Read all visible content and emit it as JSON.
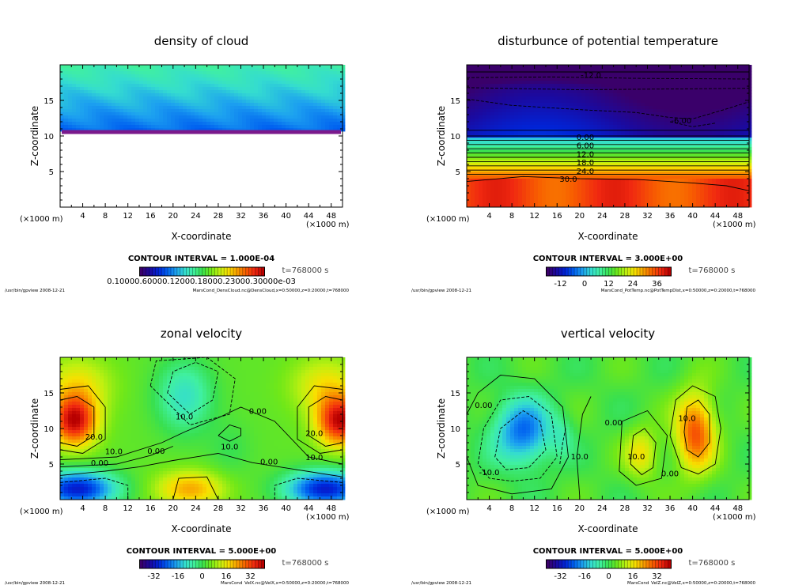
{
  "colors": {
    "frame": "#000000",
    "magenta": "#7a1a8c",
    "scale": [
      "#3a006a",
      "#1a0aa0",
      "#0024d8",
      "#0060f0",
      "#1ca0f0",
      "#34dcd0",
      "#40f0a0",
      "#38e050",
      "#70e818",
      "#c0f010",
      "#f8e000",
      "#f8a000",
      "#f86000",
      "#f02810",
      "#b80000"
    ]
  },
  "chart_data": [
    {
      "id": "cloud",
      "type": "heatmap",
      "title": "density of cloud",
      "xlabel": "X-coordinate",
      "ylabel": "Z-coordinate",
      "x_multiplier": "(×1000 m)",
      "x_multiplier_right": "(×1000 m)",
      "xlim": [
        0,
        50
      ],
      "ylim": [
        0,
        20
      ],
      "xticks": [
        4,
        8,
        12,
        16,
        20,
        24,
        28,
        32,
        36,
        40,
        44,
        48
      ],
      "yticks": [
        5,
        10,
        15
      ],
      "contour_interval": "CONTOUR INTERVAL = 1.000E-04",
      "time": "t=768000 s",
      "colorbar_labels": "0.10000.60000.12000.18000.23000.30000e-03",
      "footer_left": "/usr/bin/gpview  2008-12-21",
      "footer_right": "MarsCond_DensCloud.nc@DensCloud,x=0:50000,z=0:20000,t=768000",
      "cloud_base_z": 10.5,
      "contour_labels": []
    },
    {
      "id": "pottemp",
      "type": "heatmap",
      "title": "disturbunce of potential temperature",
      "xlabel": "X-coordinate",
      "ylabel": "Z-coordinate",
      "x_multiplier": "(×1000 m)",
      "x_multiplier_right": "(×1000 m)",
      "xlim": [
        0,
        50
      ],
      "ylim": [
        0,
        20
      ],
      "xticks": [
        4,
        8,
        12,
        16,
        20,
        24,
        28,
        32,
        36,
        40,
        44,
        48
      ],
      "yticks": [
        5,
        10,
        15
      ],
      "contour_interval": "CONTOUR INTERVAL = 3.000E+00",
      "time": "t=768000 s",
      "colorbar_ticks": [
        "-12",
        "0",
        "12",
        "24",
        "36"
      ],
      "footer_left": "/usr/bin/gpview  2008-12-21",
      "footer_right": "MarsCond_PotTemp.nc@PotTempDist,x=0:50000,z=0:20000,t=768000",
      "contour_labels": [
        {
          "text": "-12.0",
          "x": 22,
          "z": 18.5
        },
        {
          "text": "-6.00",
          "x": 38,
          "z": 12.1
        },
        {
          "text": "0.00",
          "x": 21,
          "z": 9.8
        },
        {
          "text": "6.00",
          "x": 21,
          "z": 8.6
        },
        {
          "text": "12.0",
          "x": 21,
          "z": 7.4
        },
        {
          "text": "18.0",
          "x": 21,
          "z": 6.2
        },
        {
          "text": "24.0",
          "x": 21,
          "z": 5.0
        },
        {
          "text": "30.0",
          "x": 18,
          "z": 3.9
        }
      ]
    },
    {
      "id": "velx",
      "type": "heatmap",
      "title": "zonal velocity",
      "xlabel": "X-coordinate",
      "ylabel": "Z-coordinate",
      "x_multiplier": "(×1000 m)",
      "x_multiplier_right": "(×1000 m)",
      "xlim": [
        0,
        50
      ],
      "ylim": [
        0,
        20
      ],
      "xticks": [
        4,
        8,
        12,
        16,
        20,
        24,
        28,
        32,
        36,
        40,
        44,
        48
      ],
      "yticks": [
        5,
        10,
        15
      ],
      "contour_interval": "CONTOUR INTERVAL = 5.000E+00",
      "time": "t=768000 s",
      "colorbar_ticks": [
        "-32",
        "-16",
        "0",
        "16",
        "32"
      ],
      "footer_left": "/usr/bin/gpview  2008-12-21",
      "footer_right": "MarsCond_VelX.nc@VelX,x=0:50000,z=0:20000,t=768000",
      "contour_labels": [
        {
          "text": "10.0",
          "x": 22,
          "z": 11.6
        },
        {
          "text": "0.00",
          "x": 35,
          "z": 12.4
        },
        {
          "text": "20.0",
          "x": 6,
          "z": 8.8
        },
        {
          "text": "10.0",
          "x": 9.5,
          "z": 6.7
        },
        {
          "text": "0.00",
          "x": 7,
          "z": 5.1
        },
        {
          "text": "0.00",
          "x": 17,
          "z": 6.8
        },
        {
          "text": "10.0",
          "x": 30,
          "z": 7.4
        },
        {
          "text": "0.00",
          "x": 37,
          "z": 5.3
        },
        {
          "text": "20.0",
          "x": 45,
          "z": 9.3
        },
        {
          "text": "10.0",
          "x": 45,
          "z": 5.9
        }
      ]
    },
    {
      "id": "velz",
      "type": "heatmap",
      "title": "vertical velocity",
      "xlabel": "X-coordinate",
      "ylabel": "Z-coordinate",
      "x_multiplier": "(×1000 m)",
      "x_multiplier_right": "(×1000 m)",
      "xlim": [
        0,
        50
      ],
      "ylim": [
        0,
        20
      ],
      "xticks": [
        4,
        8,
        12,
        16,
        20,
        24,
        28,
        32,
        36,
        40,
        44,
        48
      ],
      "yticks": [
        5,
        10,
        15
      ],
      "contour_interval": "CONTOUR INTERVAL = 5.000E+00",
      "time": "t=768000 s",
      "colorbar_ticks": [
        "-32",
        "-16",
        "0",
        "16",
        "32"
      ],
      "footer_left": "/usr/bin/gpview  2008-12-21",
      "footer_right": "MarsCond_VelZ.nc@VelZ,x=0:50000,z=0:20000,t=768000",
      "contour_labels": [
        {
          "text": "0.00",
          "x": 3,
          "z": 13.2
        },
        {
          "text": "-10.0",
          "x": 4,
          "z": 3.8
        },
        {
          "text": "10.0",
          "x": 20,
          "z": 6
        },
        {
          "text": "0.00",
          "x": 26,
          "z": 10.8
        },
        {
          "text": "10.0",
          "x": 30,
          "z": 6
        },
        {
          "text": "0.00",
          "x": 36,
          "z": 3.6
        },
        {
          "text": "10.0",
          "x": 39,
          "z": 11.4
        }
      ]
    }
  ]
}
